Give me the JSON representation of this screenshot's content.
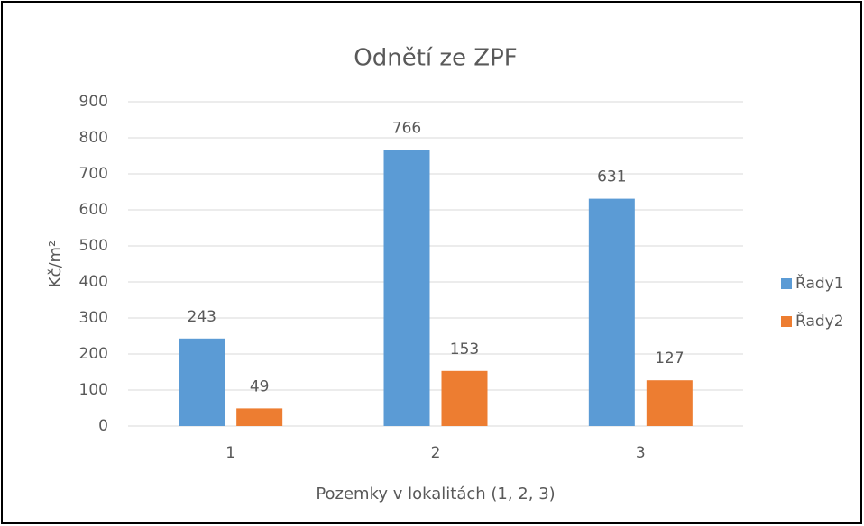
{
  "chart_data": {
    "type": "bar",
    "title": "Odnětí ze ZPF",
    "x_label": "Pozemky v lokalitách (1, 2, 3)",
    "y_label": "Kč/m²",
    "categories": [
      "1",
      "2",
      "3"
    ],
    "series": [
      {
        "name": "Řady1",
        "color": "#5b9bd5",
        "values": [
          243,
          766,
          631
        ]
      },
      {
        "name": "Řady2",
        "color": "#ed7d31",
        "values": [
          49,
          153,
          127
        ]
      }
    ],
    "ylim": [
      0,
      900
    ],
    "yticks": [
      0,
      100,
      200,
      300,
      400,
      500,
      600,
      700,
      800,
      900
    ],
    "grid": true,
    "legend": "right",
    "data_labels": true
  }
}
